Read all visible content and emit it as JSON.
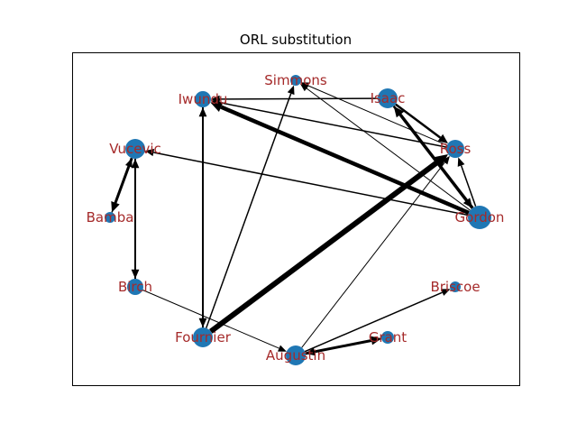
{
  "title": "ORL substitution",
  "colors": {
    "node": "#1f77b4",
    "label": "#a52a2a",
    "edge": "#000000",
    "frame": "#000000"
  },
  "nodes": [
    {
      "id": "Simmons",
      "label": "Simmons"
    },
    {
      "id": "Isaac",
      "label": "Isaac"
    },
    {
      "id": "Iwundu",
      "label": "Iwundu"
    },
    {
      "id": "Ross",
      "label": "Ross"
    },
    {
      "id": "Vucevic",
      "label": "Vucevic"
    },
    {
      "id": "Gordon",
      "label": "Gordon"
    },
    {
      "id": "Bamba",
      "label": "Bamba"
    },
    {
      "id": "Birch",
      "label": "Birch"
    },
    {
      "id": "Briscoe",
      "label": "Briscoe"
    },
    {
      "id": "Fournier",
      "label": "Fournier"
    },
    {
      "id": "Grant",
      "label": "Grant"
    },
    {
      "id": "Augustin",
      "label": "Augustin"
    }
  ],
  "edges": [
    {
      "from": "Isaac",
      "to": "Iwundu",
      "weight": 1.5
    },
    {
      "from": "Ross",
      "to": "Iwundu",
      "weight": 1.5
    },
    {
      "from": "Gordon",
      "to": "Iwundu",
      "weight": 4.5
    },
    {
      "from": "Gordon",
      "to": "Isaac",
      "weight": 3.5
    },
    {
      "from": "Isaac",
      "to": "Gordon",
      "weight": 2.5
    },
    {
      "from": "Isaac",
      "to": "Ross",
      "weight": 2.5
    },
    {
      "from": "Ross",
      "to": "Simmons",
      "weight": 1.0
    },
    {
      "from": "Gordon",
      "to": "Simmons",
      "weight": 1.0
    },
    {
      "from": "Gordon",
      "to": "Ross",
      "weight": 1.5
    },
    {
      "from": "Gordon",
      "to": "Vucevic",
      "weight": 1.5
    },
    {
      "from": "Vucevic",
      "to": "Bamba",
      "weight": 3.0
    },
    {
      "from": "Bamba",
      "to": "Vucevic",
      "weight": 1.5
    },
    {
      "from": "Vucevic",
      "to": "Birch",
      "weight": 2.0
    },
    {
      "from": "Birch",
      "to": "Vucevic",
      "weight": 2.0
    },
    {
      "from": "Iwundu",
      "to": "Fournier",
      "weight": 2.0
    },
    {
      "from": "Fournier",
      "to": "Iwundu",
      "weight": 2.0
    },
    {
      "from": "Fournier",
      "to": "Simmons",
      "weight": 1.5
    },
    {
      "from": "Fournier",
      "to": "Ross",
      "weight": 6.0
    },
    {
      "from": "Birch",
      "to": "Augustin",
      "weight": 1.0
    },
    {
      "from": "Augustin",
      "to": "Ross",
      "weight": 1.0
    },
    {
      "from": "Augustin",
      "to": "Briscoe",
      "weight": 1.5
    },
    {
      "from": "Augustin",
      "to": "Grant",
      "weight": 3.0
    },
    {
      "from": "Grant",
      "to": "Augustin",
      "weight": 2.0
    }
  ]
}
